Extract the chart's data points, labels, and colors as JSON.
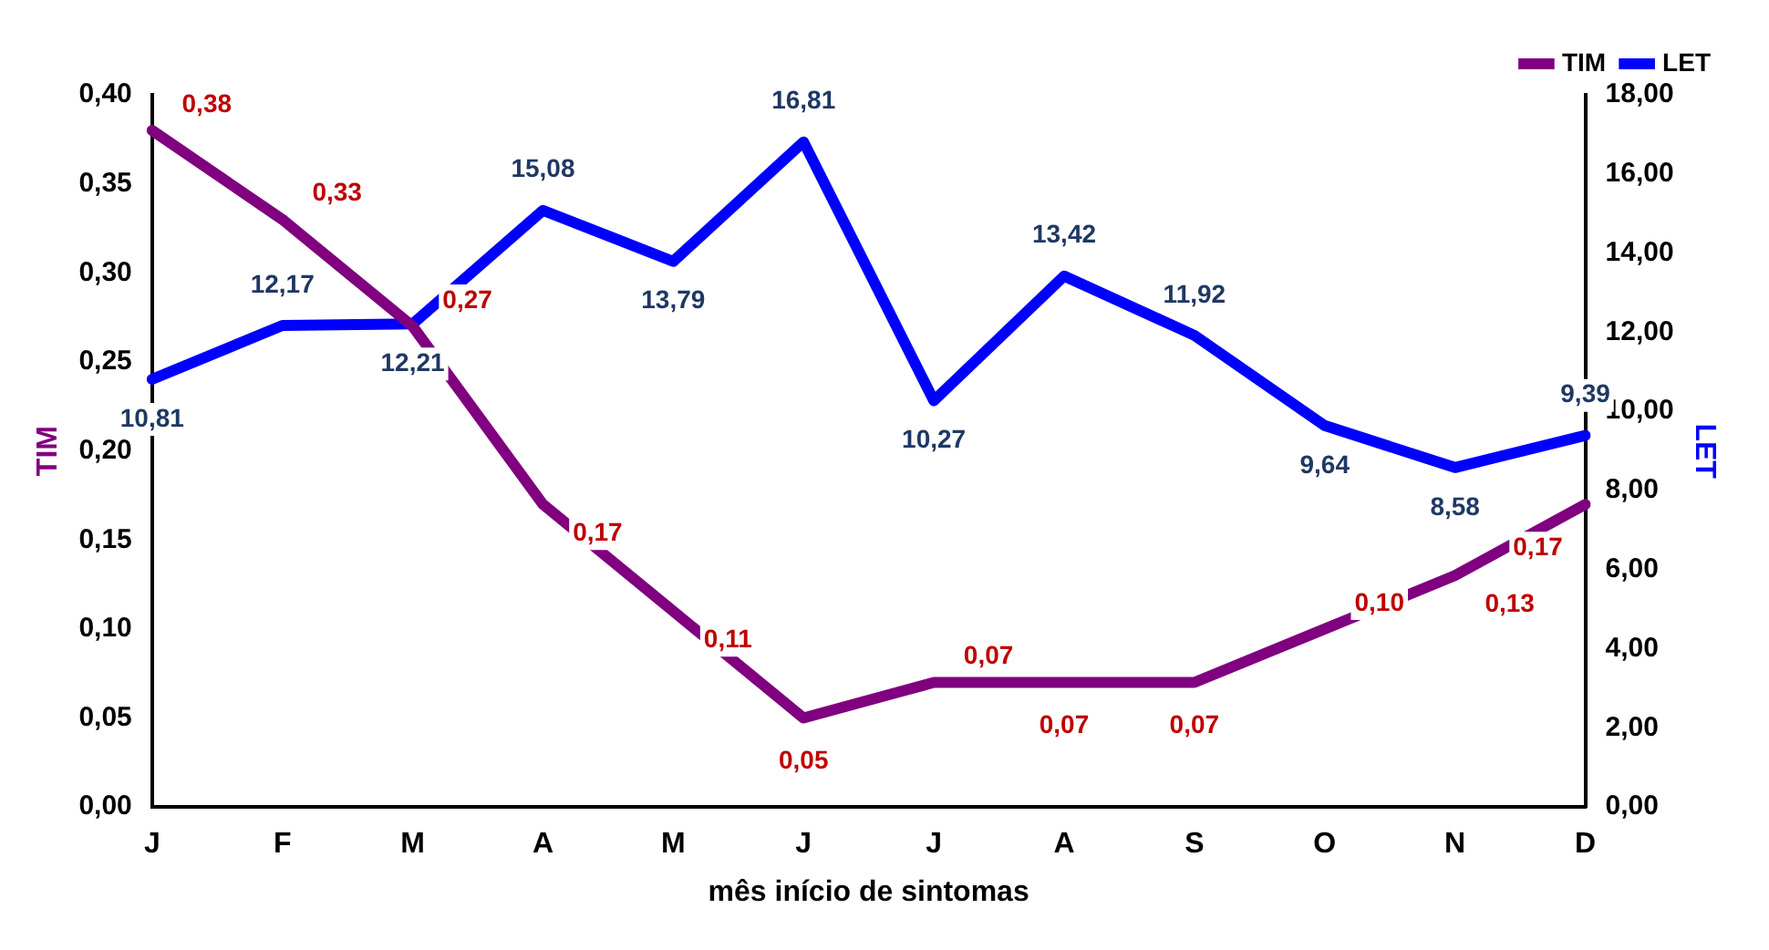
{
  "chart_data": {
    "type": "line",
    "xlabel": "mês início de sintomas",
    "ylabel": "TIM",
    "y2label": "LET",
    "categories": [
      "J",
      "F",
      "M",
      "A",
      "M",
      "J",
      "J",
      "A",
      "S",
      "O",
      "N",
      "D"
    ],
    "series": [
      {
        "name": "TIM",
        "color": "#800080",
        "values": [
          0.38,
          0.33,
          0.27,
          0.17,
          0.11,
          0.05,
          0.07,
          0.07,
          0.07,
          0.1,
          0.13,
          0.17
        ],
        "value_labels": [
          "0,38",
          "0,33",
          "0,27",
          "0,17",
          "0,11",
          "0,05",
          "0,07",
          "0,07",
          "0,07",
          "0,10",
          "0,13",
          "0,17"
        ]
      },
      {
        "name": "LET",
        "color": "#0000ff",
        "axis": "y2",
        "values": [
          10.81,
          12.17,
          12.21,
          15.08,
          13.79,
          16.81,
          10.27,
          13.42,
          11.92,
          9.64,
          8.58,
          9.39
        ],
        "value_labels": [
          "10,81",
          "12,17",
          "12,21",
          "15,08",
          "13,79",
          "16,81",
          "10,27",
          "13,42",
          "11,92",
          "9,64",
          "8,58",
          "9,39"
        ]
      }
    ],
    "ylim": [
      0,
      0.4
    ],
    "yticks": [
      {
        "value": 0,
        "label": "0,00"
      },
      {
        "value": 0.05,
        "label": "0,05"
      },
      {
        "value": 0.1,
        "label": "0,10"
      },
      {
        "value": 0.15,
        "label": "0,15"
      },
      {
        "value": 0.2,
        "label": "0,20"
      },
      {
        "value": 0.25,
        "label": "0,25"
      },
      {
        "value": 0.3,
        "label": "0,30"
      },
      {
        "value": 0.35,
        "label": "0,35"
      },
      {
        "value": 0.4,
        "label": "0,40"
      }
    ],
    "y2lim": [
      0,
      18
    ],
    "y2ticks": [
      {
        "value": 0,
        "label": "0,00"
      },
      {
        "value": 2,
        "label": "2,00"
      },
      {
        "value": 4,
        "label": "4,00"
      },
      {
        "value": 6,
        "label": "6,00"
      },
      {
        "value": 8,
        "label": "8,00"
      },
      {
        "value": 10,
        "label": "10,00"
      },
      {
        "value": 12,
        "label": "12,00"
      },
      {
        "value": 14,
        "label": "14,00"
      },
      {
        "value": 16,
        "label": "16,00"
      },
      {
        "value": 18,
        "label": "18,00"
      }
    ],
    "grid": false,
    "legend": "top right",
    "marker": "none",
    "line_style": "solid"
  }
}
